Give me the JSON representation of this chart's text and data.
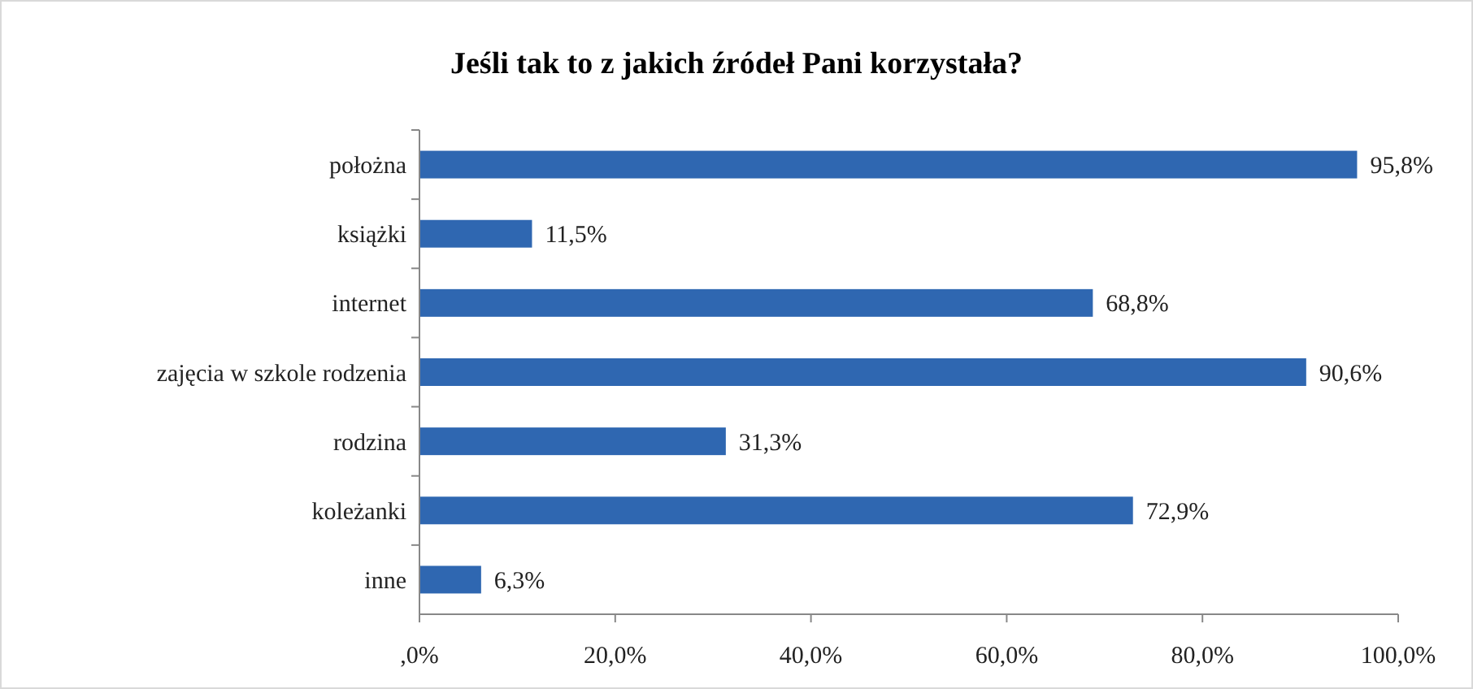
{
  "chart_data": {
    "type": "bar",
    "orientation": "horizontal",
    "title": "Jeśli tak to z jakich źródeł Pani korzystała?",
    "categories": [
      "położna",
      "książki",
      "internet",
      "zajęcia w szkole rodzenia",
      "rodzina",
      "koleżanki",
      "inne"
    ],
    "values": [
      95.8,
      11.5,
      68.8,
      90.6,
      31.3,
      72.9,
      6.3
    ],
    "value_labels": [
      "95,8%",
      "11,5%",
      "68,8%",
      "90,6%",
      "31,3%",
      "72,9%",
      "6,3%"
    ],
    "color": "#2f67b1",
    "xlim": [
      0,
      100
    ],
    "xticks": [
      {
        "value": 0,
        "label": ",0%"
      },
      {
        "value": 20,
        "label": "20,0%"
      },
      {
        "value": 40,
        "label": "40,0%"
      },
      {
        "value": 60,
        "label": "60,0%"
      },
      {
        "value": 80,
        "label": "80,0%"
      },
      {
        "value": 100,
        "label": "100,0%"
      }
    ],
    "grid": false
  }
}
